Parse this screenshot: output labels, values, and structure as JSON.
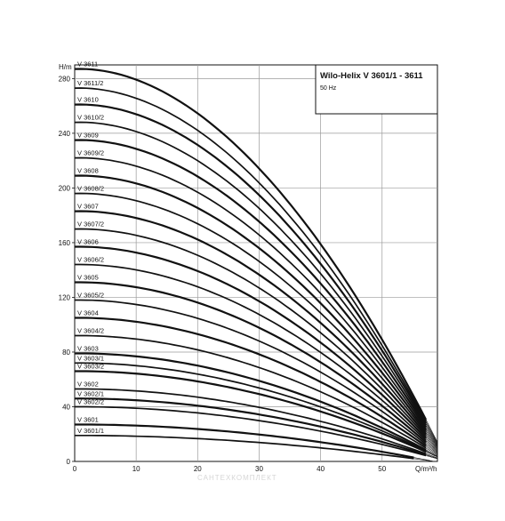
{
  "chart_data": {
    "type": "line",
    "title": "Wilo-Helix V 3601/1 - 3611",
    "subtitle": "50 Hz",
    "ylabel": "H/m",
    "xlabel": "Q/m³/h",
    "xlim": [
      0,
      59
    ],
    "ylim": [
      0,
      290
    ],
    "x_ticks": [
      0,
      10,
      20,
      30,
      40,
      50
    ],
    "y_ticks": [
      0,
      40,
      80,
      120,
      160,
      200,
      240,
      280
    ],
    "grid": true,
    "series": [
      {
        "name": "V 3611",
        "shutoff": 287,
        "qmax": 58
      },
      {
        "name": "V 3611/2",
        "shutoff": 273,
        "qmax": 58
      },
      {
        "name": "V 3610",
        "shutoff": 261,
        "qmax": 58
      },
      {
        "name": "V 3610/2",
        "shutoff": 248,
        "qmax": 58
      },
      {
        "name": "V 3609",
        "shutoff": 235,
        "qmax": 58
      },
      {
        "name": "V 3609/2",
        "shutoff": 222,
        "qmax": 58
      },
      {
        "name": "V 3608",
        "shutoff": 209,
        "qmax": 58
      },
      {
        "name": "V 3608/2",
        "shutoff": 196,
        "qmax": 58
      },
      {
        "name": "V 3607",
        "shutoff": 183,
        "qmax": 58
      },
      {
        "name": "V 3607/2",
        "shutoff": 170,
        "qmax": 58
      },
      {
        "name": "V 3606",
        "shutoff": 157,
        "qmax": 58
      },
      {
        "name": "V 3606/2",
        "shutoff": 144,
        "qmax": 58
      },
      {
        "name": "V 3605",
        "shutoff": 131,
        "qmax": 58
      },
      {
        "name": "V 3605/2",
        "shutoff": 118,
        "qmax": 58
      },
      {
        "name": "V 3604",
        "shutoff": 105,
        "qmax": 58
      },
      {
        "name": "V 3604/2",
        "shutoff": 92,
        "qmax": 58
      },
      {
        "name": "V 3603",
        "shutoff": 79,
        "qmax": 58
      },
      {
        "name": "V 3603/1",
        "shutoff": 72,
        "qmax": 58
      },
      {
        "name": "V 3603/2",
        "shutoff": 66,
        "qmax": 58
      },
      {
        "name": "V 3602",
        "shutoff": 53,
        "qmax": 58
      },
      {
        "name": "V 3602/1",
        "shutoff": 46,
        "qmax": 58
      },
      {
        "name": "V 3602/2",
        "shutoff": 40,
        "qmax": 58
      },
      {
        "name": "V 3601",
        "shutoff": 27,
        "qmax": 56
      },
      {
        "name": "V 3601/1",
        "shutoff": 19,
        "qmax": 56
      }
    ]
  },
  "watermark_text": "САНТЕХКОМПЛЕКТ",
  "colors": {
    "curve": "#111111",
    "grid": "#9a9a9a",
    "axis": "#111111",
    "background": "#ffffff"
  }
}
